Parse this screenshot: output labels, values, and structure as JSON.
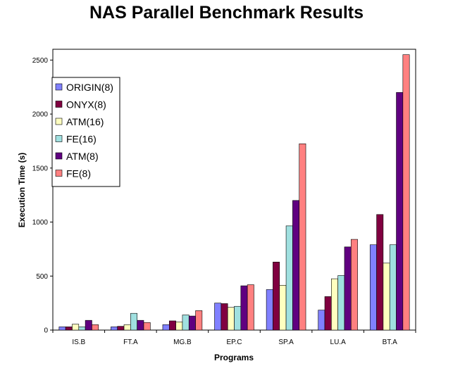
{
  "chart_data": {
    "type": "bar",
    "title": "NAS Parallel Benchmark Results",
    "xlabel": "Programs",
    "ylabel": "Execution Time (s)",
    "ylim": [
      0,
      2600
    ],
    "yticks": [
      0,
      500,
      1000,
      1500,
      2000,
      2500
    ],
    "grid": false,
    "legend_position": "top-left",
    "categories": [
      "IS.B",
      "FT.A",
      "MG.B",
      "EP.C",
      "SP.A",
      "LU.A",
      "BT.A"
    ],
    "series": [
      {
        "name": "ORIGIN(8)",
        "color": "#8080ff",
        "values": [
          30,
          30,
          50,
          250,
          375,
          185,
          790
        ]
      },
      {
        "name": "ONYX(8)",
        "color": "#800040",
        "values": [
          30,
          35,
          85,
          245,
          630,
          310,
          1070
        ]
      },
      {
        "name": "ATM(16)",
        "color": "#ffffc0",
        "values": [
          55,
          50,
          75,
          210,
          415,
          475,
          620
        ]
      },
      {
        "name": "FE(16)",
        "color": "#a0e0e0",
        "values": [
          30,
          155,
          140,
          220,
          965,
          505,
          790
        ]
      },
      {
        "name": "ATM(8)",
        "color": "#600080",
        "values": [
          90,
          90,
          130,
          410,
          1200,
          770,
          2200
        ]
      },
      {
        "name": "FE(8)",
        "color": "#ff8080",
        "values": [
          50,
          70,
          180,
          420,
          1725,
          840,
          2550
        ]
      }
    ]
  }
}
